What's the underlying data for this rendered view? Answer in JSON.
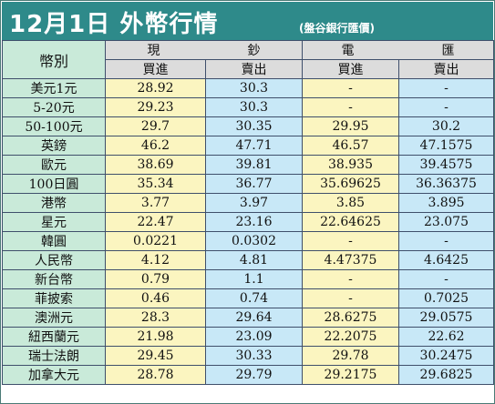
{
  "title": "12月1日 外幣行情",
  "source": "(盤谷銀行匯價)",
  "header": {
    "currency_col": "幣別",
    "cash_group": [
      "現",
      "鈔"
    ],
    "wire_group": [
      "電",
      "匯"
    ],
    "buy": "買進",
    "sell": "賣出"
  },
  "rows": [
    {
      "name": "美元1元",
      "cash_buy": "28.92",
      "cash_sell": "30.3",
      "wire_buy": "-",
      "wire_sell": "-"
    },
    {
      "name": "5-20元",
      "cash_buy": "29.23",
      "cash_sell": "30.3",
      "wire_buy": "-",
      "wire_sell": "-"
    },
    {
      "name": "50-100元",
      "cash_buy": "29.7",
      "cash_sell": "30.35",
      "wire_buy": "29.95",
      "wire_sell": "30.2"
    },
    {
      "name": "英鎊",
      "cash_buy": "46.2",
      "cash_sell": "47.71",
      "wire_buy": "46.57",
      "wire_sell": "47.1575"
    },
    {
      "name": "歐元",
      "cash_buy": "38.69",
      "cash_sell": "39.81",
      "wire_buy": "38.935",
      "wire_sell": "39.4575"
    },
    {
      "name": "100日圓",
      "cash_buy": "35.34",
      "cash_sell": "36.77",
      "wire_buy": "35.69625",
      "wire_sell": "36.36375"
    },
    {
      "name": "港幣",
      "cash_buy": "3.77",
      "cash_sell": "3.97",
      "wire_buy": "3.85",
      "wire_sell": "3.895"
    },
    {
      "name": "星元",
      "cash_buy": "22.47",
      "cash_sell": "23.16",
      "wire_buy": "22.64625",
      "wire_sell": "23.075"
    },
    {
      "name": "韓圓",
      "cash_buy": "0.0221",
      "cash_sell": "0.0302",
      "wire_buy": "-",
      "wire_sell": "-"
    },
    {
      "name": "人民幣",
      "cash_buy": "4.12",
      "cash_sell": "4.81",
      "wire_buy": "4.47375",
      "wire_sell": "4.6425"
    },
    {
      "name": "新台幣",
      "cash_buy": "0.79",
      "cash_sell": "1.1",
      "wire_buy": "-",
      "wire_sell": "-"
    },
    {
      "name": "菲披索",
      "cash_buy": "0.46",
      "cash_sell": "0.74",
      "wire_buy": "-",
      "wire_sell": "0.7025"
    },
    {
      "name": "澳洲元",
      "cash_buy": "28.3",
      "cash_sell": "29.64",
      "wire_buy": "28.6275",
      "wire_sell": "29.0575"
    },
    {
      "name": "紐西蘭元",
      "cash_buy": "21.98",
      "cash_sell": "23.09",
      "wire_buy": "22.2075",
      "wire_sell": "22.62"
    },
    {
      "name": "瑞士法朗",
      "cash_buy": "29.45",
      "cash_sell": "30.33",
      "wire_buy": "29.78",
      "wire_sell": "30.2475"
    },
    {
      "name": "加拿大元",
      "cash_buy": "28.78",
      "cash_sell": "29.79",
      "wire_buy": "29.2175",
      "wire_sell": "29.6825"
    }
  ],
  "colors": {
    "banner": "#2e8a8a",
    "name_column": "#c9ead9",
    "buy_column": "#fbf5c0",
    "sell_column": "#c8e8f7",
    "header": "#dcdcdc"
  }
}
